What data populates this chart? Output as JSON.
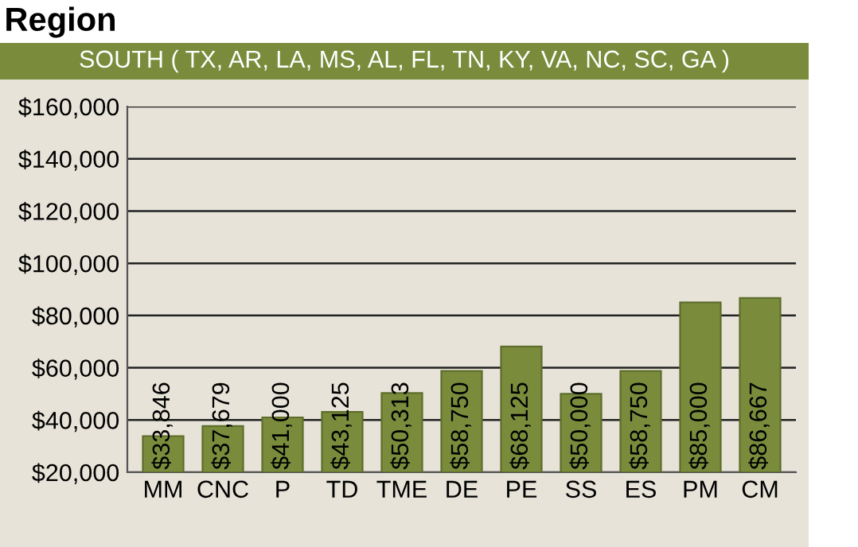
{
  "chart_data": {
    "type": "bar",
    "title": "Region",
    "subtitle": "SOUTH ( TX, AR, LA, MS, AL, FL, TN, KY, VA, NC, SC, GA )",
    "categories": [
      "MM",
      "CNC",
      "P",
      "TD",
      "TME",
      "DE",
      "PE",
      "SS",
      "ES",
      "PM",
      "CM"
    ],
    "values": [
      33846,
      37679,
      41000,
      43125,
      50313,
      58750,
      68125,
      50000,
      58750,
      85000,
      86667
    ],
    "value_labels": [
      "$33,846",
      "$37,679",
      "$41,000",
      "$43,125",
      "$50,313",
      "$58,750",
      "$68,125",
      "$50,000",
      "$58,750",
      "$85,000",
      "$86,667"
    ],
    "color": "#7a8c3c",
    "ylim": [
      20000,
      160000
    ],
    "yticks": [
      {
        "value": 20000,
        "label": "$20,000"
      },
      {
        "value": 40000,
        "label": "$40,000"
      },
      {
        "value": 60000,
        "label": "$60,000"
      },
      {
        "value": 80000,
        "label": "$80,000"
      },
      {
        "value": 100000,
        "label": "$100,000"
      },
      {
        "value": 120000,
        "label": "$120,000"
      },
      {
        "value": 140000,
        "label": "$140,000"
      },
      {
        "value": 160000,
        "label": "$160,000"
      }
    ],
    "grid": "y"
  }
}
